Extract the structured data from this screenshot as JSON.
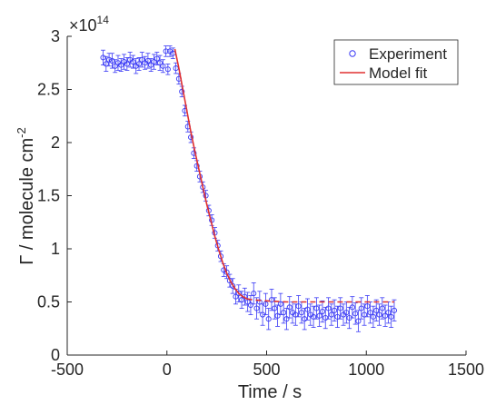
{
  "chart_data": {
    "type": "scatter",
    "title": "",
    "xlabel": "Time / s",
    "ylabel": "Γ / molecule cm",
    "ylabel_superscript": "-2",
    "exponent_base": "×10",
    "exponent_power": "14",
    "xlim": [
      -500,
      1500
    ],
    "ylim": [
      0,
      3
    ],
    "xticks": [
      -500,
      0,
      500,
      1000,
      1500
    ],
    "xtick_labels": [
      "-500",
      "0",
      "500",
      "1000",
      "1500"
    ],
    "yticks": [
      0,
      0.5,
      1,
      1.5,
      2,
      2.5,
      3
    ],
    "ytick_labels": [
      "0",
      "0.5",
      "1",
      "1.5",
      "2",
      "2.5",
      "3"
    ],
    "grid": false,
    "legend_position": "top-right",
    "colors": {
      "experiment": "#3a3af5",
      "model": "#e03030",
      "axis": "#262626"
    },
    "series": [
      {
        "name": "Experiment",
        "kind": "points-with-errorbars",
        "x": [
          -320,
          -305,
          -290,
          -275,
          -260,
          -245,
          -230,
          -215,
          -200,
          -185,
          -170,
          -155,
          -140,
          -125,
          -110,
          -95,
          -80,
          -65,
          -50,
          -35,
          -20,
          -5,
          5,
          15,
          30,
          45,
          60,
          75,
          90,
          105,
          120,
          135,
          150,
          165,
          180,
          195,
          210,
          225,
          240,
          255,
          270,
          285,
          300,
          315,
          330,
          345,
          360,
          375,
          390,
          405,
          420,
          435,
          450,
          465,
          480,
          495,
          510,
          525,
          540,
          555,
          570,
          585,
          600,
          615,
          630,
          645,
          660,
          675,
          690,
          705,
          720,
          735,
          750,
          765,
          780,
          795,
          810,
          825,
          840,
          855,
          870,
          885,
          900,
          915,
          930,
          945,
          960,
          975,
          990,
          1005,
          1020,
          1035,
          1050,
          1065,
          1080,
          1095,
          1110,
          1125,
          1140
        ],
        "y": [
          2.8,
          2.74,
          2.78,
          2.77,
          2.72,
          2.75,
          2.73,
          2.76,
          2.74,
          2.78,
          2.76,
          2.72,
          2.74,
          2.78,
          2.75,
          2.77,
          2.73,
          2.76,
          2.79,
          2.75,
          2.72,
          2.86,
          2.69,
          2.86,
          2.84,
          2.7,
          2.6,
          2.48,
          2.3,
          2.15,
          2.05,
          1.9,
          1.78,
          1.68,
          1.58,
          1.5,
          1.36,
          1.27,
          1.15,
          1.03,
          0.93,
          0.8,
          0.78,
          0.7,
          0.65,
          0.55,
          0.58,
          0.52,
          0.55,
          0.5,
          0.47,
          0.58,
          0.44,
          0.5,
          0.38,
          0.48,
          0.34,
          0.52,
          0.44,
          0.37,
          0.48,
          0.4,
          0.34,
          0.45,
          0.4,
          0.38,
          0.46,
          0.4,
          0.34,
          0.43,
          0.38,
          0.36,
          0.44,
          0.37,
          0.41,
          0.35,
          0.44,
          0.38,
          0.42,
          0.36,
          0.44,
          0.38,
          0.4,
          0.35,
          0.45,
          0.39,
          0.32,
          0.44,
          0.38,
          0.46,
          0.4,
          0.36,
          0.42,
          0.38,
          0.44,
          0.37,
          0.4,
          0.36,
          0.42
        ],
        "error": [
          0.07,
          0.07,
          0.06,
          0.07,
          0.06,
          0.07,
          0.06,
          0.07,
          0.06,
          0.07,
          0.06,
          0.07,
          0.06,
          0.07,
          0.06,
          0.07,
          0.06,
          0.07,
          0.06,
          0.07,
          0.06,
          0.05,
          0.05,
          0.05,
          0.05,
          0.05,
          0.05,
          0.05,
          0.05,
          0.05,
          0.05,
          0.05,
          0.05,
          0.05,
          0.05,
          0.05,
          0.05,
          0.05,
          0.05,
          0.05,
          0.05,
          0.06,
          0.06,
          0.06,
          0.07,
          0.07,
          0.08,
          0.08,
          0.08,
          0.09,
          0.09,
          0.1,
          0.1,
          0.1,
          0.1,
          0.1,
          0.1,
          0.1,
          0.1,
          0.1,
          0.1,
          0.1,
          0.1,
          0.1,
          0.1,
          0.1,
          0.1,
          0.1,
          0.1,
          0.1,
          0.1,
          0.1,
          0.1,
          0.1,
          0.1,
          0.1,
          0.1,
          0.1,
          0.1,
          0.1,
          0.1,
          0.1,
          0.1,
          0.1,
          0.1,
          0.1,
          0.1,
          0.1,
          0.1,
          0.1,
          0.1,
          0.1,
          0.1,
          0.1,
          0.1,
          0.1,
          0.1,
          0.1,
          0.1
        ]
      },
      {
        "name": "Model fit",
        "kind": "line",
        "x": [
          40,
          60,
          80,
          100,
          120,
          140,
          160,
          180,
          200,
          220,
          240,
          260,
          280,
          300,
          320,
          340,
          360,
          380,
          400,
          430,
          460,
          500,
          550,
          600,
          700,
          800,
          900,
          1000,
          1140
        ],
        "y": [
          2.88,
          2.7,
          2.5,
          2.3,
          2.1,
          1.92,
          1.75,
          1.58,
          1.42,
          1.27,
          1.12,
          0.99,
          0.87,
          0.77,
          0.69,
          0.63,
          0.58,
          0.55,
          0.53,
          0.52,
          0.515,
          0.51,
          0.505,
          0.5,
          0.5,
          0.5,
          0.5,
          0.5,
          0.5
        ]
      }
    ]
  }
}
